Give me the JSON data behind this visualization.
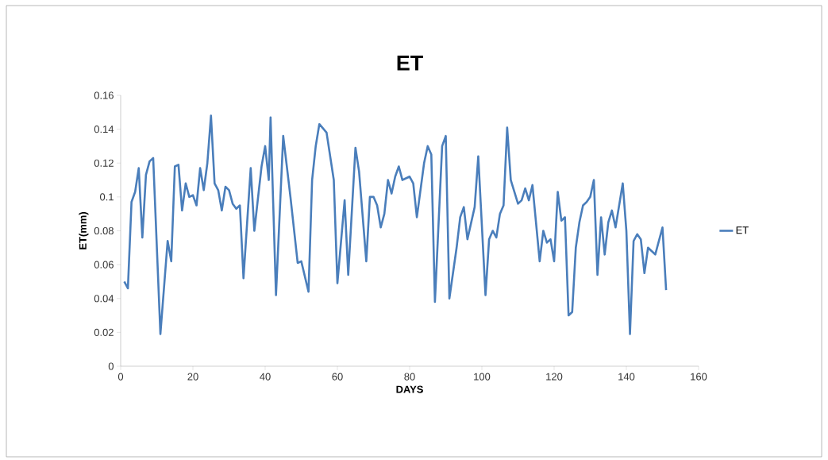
{
  "chart_data": {
    "type": "line",
    "title": "ET",
    "xlabel": "DAYS",
    "ylabel": "ET(mm)",
    "xlim": [
      0,
      160
    ],
    "ylim": [
      0,
      0.16
    ],
    "xticks": [
      0,
      20,
      40,
      60,
      80,
      100,
      120,
      140,
      160
    ],
    "yticks": [
      0,
      {
        "value": 0.02,
        "label": "0.02"
      },
      {
        "value": 0.04,
        "label": "0.04"
      },
      {
        "value": 0.06,
        "label": "0.06"
      },
      {
        "value": 0.08,
        "label": "0.08"
      },
      {
        "value": 0.1,
        "label": "0.1"
      },
      {
        "value": 0.12,
        "label": "0.12"
      },
      {
        "value": 0.14,
        "label": "0.14"
      },
      {
        "value": 0.16,
        "label": "0.16"
      }
    ],
    "grid": false,
    "legend": "right",
    "marker": "none",
    "line_style": "solid",
    "series": [
      {
        "name": "ET",
        "color": "#4a7ebb",
        "x": [
          1,
          2,
          3,
          4,
          5,
          6,
          7,
          8,
          9,
          11,
          13,
          14,
          15,
          16,
          17,
          18,
          19,
          20,
          21,
          22,
          23,
          24,
          25,
          26,
          27,
          28,
          29,
          30,
          31,
          32,
          33,
          34,
          36,
          37,
          39,
          40,
          41,
          41.5,
          43,
          45,
          47,
          49,
          50,
          52,
          53,
          54,
          55,
          57,
          59,
          60,
          62,
          63,
          65,
          66,
          68,
          69,
          70,
          71,
          72,
          73,
          74,
          75,
          76,
          77,
          78,
          80,
          81,
          82,
          84,
          85,
          86,
          87,
          89,
          90,
          91,
          93,
          94,
          95,
          96,
          98,
          99,
          101,
          102,
          103,
          104,
          105,
          106,
          107,
          108,
          110,
          111,
          112,
          113,
          114,
          116,
          117,
          118,
          119,
          120,
          121,
          122,
          123,
          124,
          125,
          126,
          127,
          128,
          129,
          130,
          131,
          132,
          133,
          134,
          135,
          136,
          137,
          139,
          140,
          141,
          142,
          143,
          144,
          145,
          146,
          148,
          150,
          151
        ],
        "values": [
          0.05,
          0.046,
          0.097,
          0.103,
          0.117,
          0.076,
          0.113,
          0.121,
          0.123,
          0.019,
          0.074,
          0.062,
          0.118,
          0.119,
          0.092,
          0.108,
          0.1,
          0.101,
          0.095,
          0.117,
          0.104,
          0.12,
          0.148,
          0.108,
          0.104,
          0.092,
          0.106,
          0.104,
          0.096,
          0.093,
          0.095,
          0.052,
          0.117,
          0.08,
          0.118,
          0.13,
          0.11,
          0.147,
          0.042,
          0.136,
          0.1,
          0.061,
          0.062,
          0.044,
          0.11,
          0.13,
          0.143,
          0.138,
          0.11,
          0.049,
          0.098,
          0.054,
          0.129,
          0.115,
          0.062,
          0.1,
          0.1,
          0.095,
          0.082,
          0.09,
          0.11,
          0.102,
          0.112,
          0.118,
          0.11,
          0.112,
          0.108,
          0.088,
          0.12,
          0.13,
          0.125,
          0.038,
          0.13,
          0.136,
          0.04,
          0.07,
          0.088,
          0.094,
          0.075,
          0.094,
          0.124,
          0.042,
          0.075,
          0.08,
          0.076,
          0.09,
          0.095,
          0.141,
          0.11,
          0.096,
          0.098,
          0.105,
          0.098,
          0.107,
          0.062,
          0.08,
          0.073,
          0.075,
          0.062,
          0.103,
          0.086,
          0.088,
          0.03,
          0.032,
          0.07,
          0.085,
          0.095,
          0.097,
          0.1,
          0.11,
          0.054,
          0.088,
          0.066,
          0.085,
          0.092,
          0.082,
          0.108,
          0.08,
          0.019,
          0.074,
          0.078,
          0.075,
          0.055,
          0.07,
          0.066,
          0.082,
          0.045
        ]
      }
    ]
  }
}
